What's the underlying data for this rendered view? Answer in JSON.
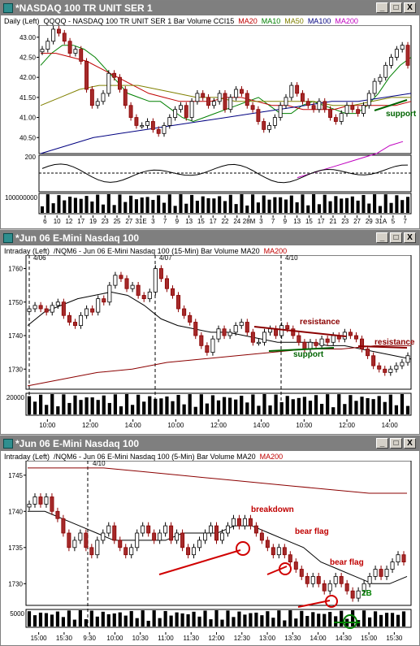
{
  "windows": [
    {
      "title": "*NASDAQ 100 TR UNIT SER 1",
      "legend": [
        {
          "text": "Daily  (Left)",
          "color": "#000000"
        },
        {
          "text": "QQQQ - NASDAQ 100 TR UNIT SER 1  Bar  Volume  CCI15",
          "color": "#000000"
        },
        {
          "text": "MA20",
          "color": "#c00000"
        },
        {
          "text": "MA10",
          "color": "#008000"
        },
        {
          "text": "MA50",
          "color": "#808000"
        },
        {
          "text": "MA100",
          "color": "#000080"
        },
        {
          "text": "MA200",
          "color": "#c000c0"
        }
      ],
      "buttons": {
        "minimize": "_",
        "maximize": "□",
        "close": "X"
      }
    },
    {
      "title": "*Jun 06  E-Mini Nasdaq 100",
      "legend": [
        {
          "text": "Intraday  (Left)",
          "color": "#000000"
        },
        {
          "text": "/NQM6 - Jun 06  E-Mini Nasdaq 100 (15-Min)  Bar  Volume  MA20",
          "color": "#000000"
        },
        {
          "text": "MA200",
          "color": "#c00000"
        }
      ],
      "buttons": {
        "minimize": "_",
        "maximize": "□",
        "close": "X"
      }
    },
    {
      "title": "*Jun 06  E-Mini Nasdaq 100",
      "legend": [
        {
          "text": "Intraday  (Left)",
          "color": "#000000"
        },
        {
          "text": "/NQM6 - Jun 06  E-Mini Nasdaq 100 (5-Min)  Bar  Volume  MA20",
          "color": "#000000"
        },
        {
          "text": "MA200",
          "color": "#c00000"
        }
      ],
      "buttons": {
        "minimize": "_",
        "maximize": "□",
        "close": "X"
      }
    }
  ],
  "chart_data": [
    {
      "type": "candlestick",
      "title": "*NASDAQ 100 TR UNIT SER 1",
      "ylim": [
        40.1,
        43.3
      ],
      "yticks": [
        "43.00",
        "42.50",
        "42.00",
        "41.50",
        "41.00",
        "40.50"
      ],
      "xticks": [
        "6",
        "10",
        "12",
        "17",
        "19",
        "23",
        "25",
        "27",
        "31E",
        "3",
        "7",
        "9",
        "13",
        "15",
        "17",
        "22",
        "24",
        "28M",
        "3",
        "7",
        "9",
        "13",
        "15",
        "17",
        "21",
        "23",
        "27",
        "29",
        "31A",
        "5",
        "7"
      ],
      "close": [
        42.7,
        42.9,
        43.2,
        43.1,
        42.9,
        42.6,
        42.7,
        42.4,
        41.7,
        41.3,
        41.4,
        41.6,
        42.1,
        42.0,
        41.7,
        41.3,
        41.0,
        40.8,
        40.8,
        40.9,
        40.7,
        40.6,
        40.8,
        41.0,
        41.2,
        41.3,
        41.0,
        41.4,
        41.6,
        41.5,
        41.3,
        41.4,
        41.6,
        41.2,
        41.5,
        41.7,
        41.6,
        41.3,
        41.2,
        40.9,
        40.7,
        40.8,
        41.0,
        41.3,
        41.5,
        41.8,
        41.6,
        41.4,
        41.3,
        41.2,
        41.4,
        41.2,
        41.0,
        40.9,
        41.1,
        41.3,
        41.2,
        41.1,
        41.3,
        41.6,
        41.9,
        42.0,
        42.3,
        42.5,
        42.7,
        42.8,
        42.3
      ],
      "ma_lines": [
        {
          "name": "MA10",
          "color": "#008000",
          "values": [
            42.3,
            42.6,
            42.8,
            42.8,
            42.7,
            42.5,
            42.2,
            41.9,
            41.6,
            41.5,
            41.4,
            41.4,
            41.2,
            41.0,
            40.9,
            41.0,
            41.1,
            41.2,
            41.3,
            41.4,
            41.5,
            41.3,
            41.1,
            41.1,
            41.3,
            41.4,
            41.3,
            41.2,
            41.1,
            41.1,
            41.3,
            41.6,
            42.0,
            42.3,
            42.5
          ]
        },
        {
          "name": "MA20",
          "color": "#c00000",
          "values": [
            42.6,
            42.6,
            42.5,
            42.4,
            42.2,
            42.0,
            41.8,
            41.6,
            41.5,
            41.4,
            41.4,
            41.4,
            41.5,
            41.5,
            41.4,
            41.3,
            41.3,
            41.2,
            41.2,
            41.2,
            41.3,
            41.3,
            41.3,
            41.3,
            41.4
          ]
        },
        {
          "name": "MA50",
          "color": "#808000",
          "values": [
            41.3,
            41.5,
            41.7,
            41.8,
            41.8,
            41.8,
            41.7,
            41.6,
            41.5,
            41.5,
            41.4,
            41.4,
            41.4,
            41.4,
            41.4,
            41.3,
            41.3,
            41.4,
            41.5,
            41.5
          ]
        },
        {
          "name": "MA100",
          "color": "#000080",
          "values": [
            40.1,
            40.3,
            40.5,
            40.6,
            40.7,
            40.8,
            40.9,
            41.0,
            41.1,
            41.2,
            41.3,
            41.4,
            41.4,
            41.5,
            41.6
          ]
        },
        {
          "name": "MA200",
          "color": "#c000c0",
          "values": [
            39.5,
            39.6,
            39.7,
            39.8,
            39.9,
            40.0,
            40.1,
            40.3,
            40.4
          ]
        }
      ],
      "cci_label": "200",
      "volume_label": "100000000",
      "annotations": [
        {
          "text": "support",
          "color": "#006400"
        }
      ]
    },
    {
      "type": "candlestick",
      "title": "*Jun 06  E-Mini Nasdaq 100 (15-Min)",
      "ylim": [
        1724,
        1764
      ],
      "yticks": [
        "1760",
        "1750",
        "1740",
        "1730"
      ],
      "xticks": [
        "10:00",
        "12:00",
        "14:00",
        "10:00",
        "12:00",
        "14:00",
        "10:00",
        "12:00",
        "14:00"
      ],
      "date_labels": [
        "4/06",
        "4/07",
        "4/10"
      ],
      "close": [
        1748,
        1749,
        1748,
        1747,
        1749,
        1750,
        1746,
        1744,
        1743,
        1746,
        1748,
        1747,
        1751,
        1750,
        1755,
        1758,
        1757,
        1754,
        1755,
        1752,
        1751,
        1753,
        1760,
        1757,
        1754,
        1752,
        1748,
        1746,
        1744,
        1740,
        1737,
        1735,
        1739,
        1742,
        1740,
        1741,
        1743,
        1744,
        1741,
        1738,
        1738,
        1741,
        1742,
        1740,
        1743,
        1742,
        1740,
        1738,
        1736,
        1738,
        1737,
        1739,
        1738,
        1740,
        1739,
        1741,
        1740,
        1739,
        1736,
        1734,
        1731,
        1730,
        1729,
        1730,
        1731,
        1732,
        1734
      ],
      "ma_lines": [
        {
          "name": "MA20",
          "color": "#000000",
          "values": [
            1743,
            1747,
            1749,
            1751,
            1752,
            1753,
            1752,
            1749,
            1745,
            1743,
            1742,
            1741,
            1741,
            1740,
            1739,
            1738,
            1738,
            1738,
            1737,
            1737,
            1736,
            1735,
            1734,
            1733
          ]
        },
        {
          "name": "MA200",
          "color": "#8b0000",
          "values": [
            1725,
            1727,
            1729,
            1730,
            1732,
            1733,
            1734,
            1735,
            1736,
            1736,
            1737,
            1737
          ]
        }
      ],
      "volume_label": "20000",
      "annotations": [
        {
          "text": "resistance",
          "color": "#8b0000"
        },
        {
          "text": "support",
          "color": "#006400"
        },
        {
          "text": "resistance",
          "color": "#8b0000"
        }
      ]
    },
    {
      "type": "candlestick",
      "title": "*Jun 06  E-Mini Nasdaq 100 (5-Min)",
      "ylim": [
        1727,
        1747
      ],
      "yticks": [
        "1745",
        "1740",
        "1735",
        "1730"
      ],
      "xticks": [
        "15:00",
        "15:30",
        "9:30",
        "10:00",
        "10:30",
        "11:00",
        "11:30",
        "12:00",
        "12:30",
        "13:00",
        "13:30",
        "14:00",
        "14:30",
        "15:00",
        "15:30"
      ],
      "date_labels": [
        "4/10"
      ],
      "close": [
        1741,
        1742,
        1741,
        1742,
        1740,
        1739,
        1737,
        1735,
        1736,
        1737,
        1735,
        1734,
        1736,
        1737,
        1738,
        1736,
        1735,
        1734,
        1735,
        1737,
        1738,
        1737,
        1736,
        1737,
        1738,
        1736,
        1737,
        1735,
        1734,
        1735,
        1736,
        1737,
        1738,
        1736,
        1737,
        1738,
        1739,
        1738,
        1739,
        1738,
        1737,
        1736,
        1735,
        1734,
        1735,
        1734,
        1733,
        1732,
        1731,
        1730,
        1731,
        1730,
        1729,
        1730,
        1731,
        1730,
        1729,
        1728,
        1729,
        1730,
        1731,
        1732,
        1731,
        1732,
        1733,
        1734,
        1733
      ],
      "ma_lines": [
        {
          "name": "MA20",
          "color": "#000000",
          "values": [
            1740,
            1740,
            1739,
            1738,
            1737,
            1736,
            1736,
            1736,
            1736,
            1737,
            1737,
            1737,
            1738,
            1738,
            1737,
            1736,
            1735,
            1733,
            1732,
            1731,
            1730,
            1730,
            1731
          ]
        },
        {
          "name": "MA200",
          "color": "#8b0000",
          "values": [
            1746,
            1746,
            1746,
            1745.5,
            1745,
            1744.5,
            1744,
            1743.5,
            1743,
            1742.5,
            1742.5
          ]
        }
      ],
      "volume_label": "5000",
      "annotations": [
        {
          "text": "breakdown",
          "color": "#c00000"
        },
        {
          "text": "bear flag",
          "color": "#c00000"
        },
        {
          "text": "bear flag",
          "color": "#c00000"
        },
        {
          "text": "2B",
          "color": "#008000"
        }
      ]
    }
  ]
}
